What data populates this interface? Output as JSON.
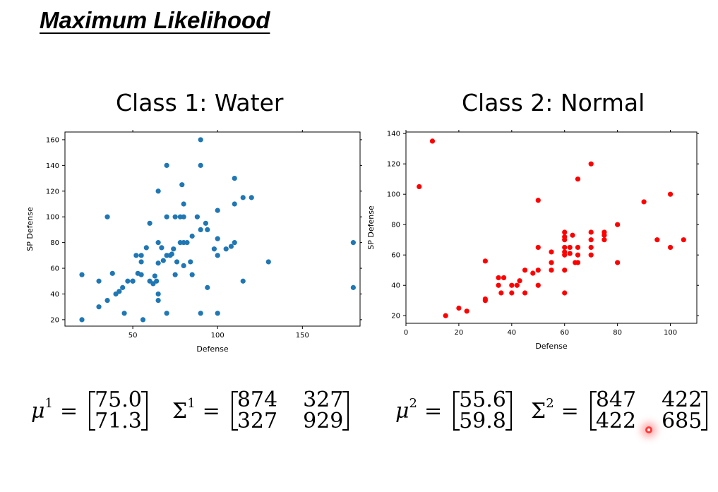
{
  "page_title": "Maximum Likelihood",
  "chart_data": [
    {
      "type": "scatter",
      "title": "Class 1: Water",
      "xlabel": "Defense",
      "ylabel": "SP Defense",
      "xlim": [
        10,
        184
      ],
      "ylim": [
        15,
        166
      ],
      "xticks": [
        50,
        100,
        150
      ],
      "yticks": [
        20,
        40,
        60,
        80,
        100,
        120,
        140,
        160
      ],
      "grid": false,
      "color": "#1f77b4",
      "points": [
        [
          20,
          55
        ],
        [
          20,
          20
        ],
        [
          30,
          50
        ],
        [
          30,
          30
        ],
        [
          35,
          35
        ],
        [
          35,
          100
        ],
        [
          38,
          56
        ],
        [
          40,
          40
        ],
        [
          42,
          42
        ],
        [
          44,
          45
        ],
        [
          45,
          25
        ],
        [
          47,
          50
        ],
        [
          50,
          50
        ],
        [
          50,
          50
        ],
        [
          52,
          70
        ],
        [
          53,
          56
        ],
        [
          55,
          55
        ],
        [
          55,
          70
        ],
        [
          55,
          65
        ],
        [
          56,
          20
        ],
        [
          58,
          76
        ],
        [
          60,
          95
        ],
        [
          60,
          50
        ],
        [
          62,
          48
        ],
        [
          63,
          54
        ],
        [
          64,
          50
        ],
        [
          65,
          120
        ],
        [
          65,
          80
        ],
        [
          65,
          64
        ],
        [
          65,
          40
        ],
        [
          65,
          35
        ],
        [
          67,
          76
        ],
        [
          68,
          66
        ],
        [
          70,
          140
        ],
        [
          70,
          100
        ],
        [
          70,
          70
        ],
        [
          70,
          25
        ],
        [
          72,
          70
        ],
        [
          73,
          71
        ],
        [
          74,
          75
        ],
        [
          75,
          55
        ],
        [
          75,
          100
        ],
        [
          76,
          65
        ],
        [
          78,
          80
        ],
        [
          78,
          100
        ],
        [
          79,
          125
        ],
        [
          80,
          110
        ],
        [
          80,
          100
        ],
        [
          80,
          80
        ],
        [
          80,
          62
        ],
        [
          82,
          80
        ],
        [
          84,
          65
        ],
        [
          85,
          85
        ],
        [
          85,
          55
        ],
        [
          88,
          100
        ],
        [
          90,
          160
        ],
        [
          90,
          140
        ],
        [
          90,
          90
        ],
        [
          90,
          25
        ],
        [
          93,
          95
        ],
        [
          94,
          90
        ],
        [
          94,
          45
        ],
        [
          98,
          75
        ],
        [
          100,
          105
        ],
        [
          100,
          83
        ],
        [
          100,
          70
        ],
        [
          100,
          25
        ],
        [
          105,
          75
        ],
        [
          108,
          77
        ],
        [
          110,
          130
        ],
        [
          110,
          110
        ],
        [
          110,
          80
        ],
        [
          115,
          115
        ],
        [
          115,
          50
        ],
        [
          120,
          115
        ],
        [
          130,
          65
        ],
        [
          180,
          80
        ],
        [
          180,
          45
        ]
      ]
    },
    {
      "type": "scatter",
      "title": "Class 2: Normal",
      "xlabel": "Defense",
      "ylabel": "SP Defense",
      "xlim": [
        0,
        110
      ],
      "ylim": [
        15,
        141
      ],
      "xticks": [
        0,
        20,
        40,
        60,
        80,
        100
      ],
      "yticks": [
        20,
        40,
        60,
        80,
        100,
        120,
        140
      ],
      "grid": false,
      "color": "#ff0000",
      "points": [
        [
          5,
          105
        ],
        [
          10,
          135
        ],
        [
          15,
          20
        ],
        [
          20,
          25
        ],
        [
          23,
          23
        ],
        [
          30,
          56
        ],
        [
          30,
          30
        ],
        [
          30,
          31
        ],
        [
          35,
          45
        ],
        [
          35,
          40
        ],
        [
          36,
          35
        ],
        [
          37,
          45
        ],
        [
          40,
          40
        ],
        [
          40,
          35
        ],
        [
          42,
          40
        ],
        [
          43,
          43
        ],
        [
          45,
          50
        ],
        [
          45,
          35
        ],
        [
          48,
          48
        ],
        [
          50,
          50
        ],
        [
          50,
          65
        ],
        [
          50,
          40
        ],
        [
          50,
          96
        ],
        [
          55,
          62
        ],
        [
          55,
          55
        ],
        [
          55,
          50
        ],
        [
          60,
          75
        ],
        [
          60,
          72
        ],
        [
          60,
          70
        ],
        [
          60,
          65
        ],
        [
          60,
          62
        ],
        [
          60,
          60
        ],
        [
          60,
          50
        ],
        [
          60,
          35
        ],
        [
          62,
          65
        ],
        [
          62,
          61
        ],
        [
          63,
          73
        ],
        [
          64,
          55
        ],
        [
          65,
          110
        ],
        [
          65,
          65
        ],
        [
          65,
          60
        ],
        [
          65,
          55
        ],
        [
          70,
          120
        ],
        [
          70,
          75
        ],
        [
          70,
          70
        ],
        [
          70,
          65
        ],
        [
          70,
          60
        ],
        [
          75,
          75
        ],
        [
          75,
          73
        ],
        [
          75,
          70
        ],
        [
          80,
          80
        ],
        [
          80,
          55
        ],
        [
          90,
          95
        ],
        [
          95,
          70
        ],
        [
          100,
          100
        ],
        [
          100,
          65
        ],
        [
          105,
          70
        ]
      ]
    }
  ],
  "equations": {
    "class1": {
      "mu_symbol": "μ",
      "mu_sup": "1",
      "mu_values": [
        "75.0",
        "71.3"
      ],
      "sigma_symbol": "Σ",
      "sigma_sup": "1",
      "sigma_values": [
        "874",
        "327",
        "327",
        "929"
      ],
      "equals": "="
    },
    "class2": {
      "mu_symbol": "μ",
      "mu_sup": "2",
      "mu_values": [
        "55.6",
        "59.8"
      ],
      "sigma_symbol": "Σ",
      "sigma_sup": "2",
      "sigma_values": [
        "847",
        "422",
        "422",
        "685"
      ],
      "equals": "="
    }
  }
}
